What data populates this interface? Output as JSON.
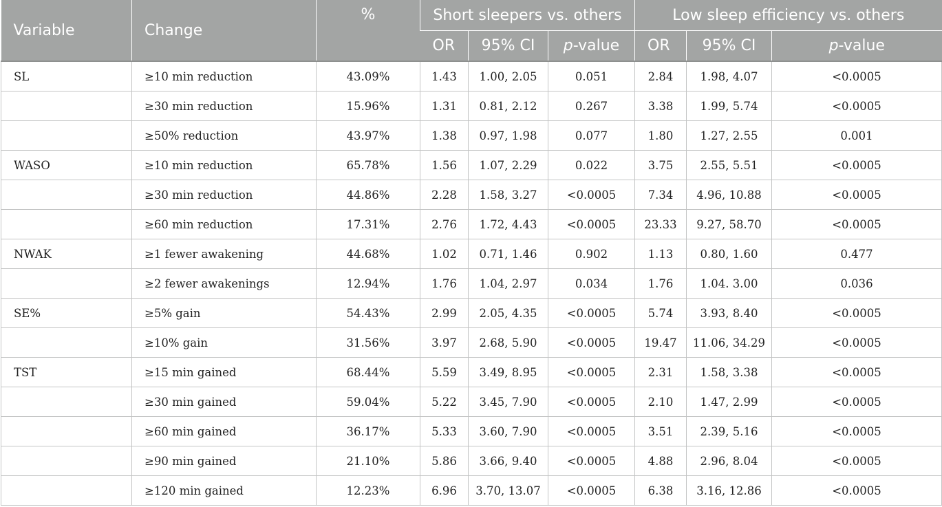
{
  "header": {
    "variable": "Variable",
    "change": "Change",
    "percent": "%",
    "group1": "Short sleepers vs. others",
    "group2": "Low sleep efficiency vs. others",
    "or": "OR",
    "ci": "95% CI",
    "p_italic": "p",
    "p_rest": "-value"
  },
  "rows": [
    {
      "variable": "SL",
      "change": "≥10 min reduction",
      "percent": "43.09%",
      "or1": "1.43",
      "ci1": "1.00, 2.05",
      "p1": "0.051",
      "or2": "2.84",
      "ci2": "1.98, 4.07",
      "p2": "<0.0005"
    },
    {
      "variable": "",
      "change": "≥30 min reduction",
      "percent": "15.96%",
      "or1": "1.31",
      "ci1": "0.81, 2.12",
      "p1": "0.267",
      "or2": "3.38",
      "ci2": "1.99, 5.74",
      "p2": "<0.0005"
    },
    {
      "variable": "",
      "change": "≥50% reduction",
      "percent": "43.97%",
      "or1": "1.38",
      "ci1": "0.97, 1.98",
      "p1": "0.077",
      "or2": "1.80",
      "ci2": "1.27, 2.55",
      "p2": "0.001"
    },
    {
      "variable": "WASO",
      "change": "≥10 min reduction",
      "percent": "65.78%",
      "or1": "1.56",
      "ci1": "1.07, 2.29",
      "p1": "0.022",
      "or2": "3.75",
      "ci2": "2.55, 5.51",
      "p2": "<0.0005"
    },
    {
      "variable": "",
      "change": "≥30 min reduction",
      "percent": "44.86%",
      "or1": "2.28",
      "ci1": "1.58, 3.27",
      "p1": "<0.0005",
      "or2": "7.34",
      "ci2": "4.96, 10.88",
      "p2": "<0.0005"
    },
    {
      "variable": "",
      "change": "≥60 min reduction",
      "percent": "17.31%",
      "or1": "2.76",
      "ci1": "1.72, 4.43",
      "p1": "<0.0005",
      "or2": "23.33",
      "ci2": "9.27, 58.70",
      "p2": "<0.0005"
    },
    {
      "variable": "NWAK",
      "change": "≥1 fewer awakening",
      "percent": "44.68%",
      "or1": "1.02",
      "ci1": "0.71, 1.46",
      "p1": "0.902",
      "or2": "1.13",
      "ci2": "0.80, 1.60",
      "p2": "0.477"
    },
    {
      "variable": "",
      "change": "≥2 fewer awakenings",
      "percent": "12.94%",
      "or1": "1.76",
      "ci1": "1.04, 2.97",
      "p1": "0.034",
      "or2": "1.76",
      "ci2": "1.04. 3.00",
      "p2": "0.036"
    },
    {
      "variable": "SE%",
      "change": "≥5% gain",
      "percent": "54.43%",
      "or1": "2.99",
      "ci1": "2.05, 4.35",
      "p1": "<0.0005",
      "or2": "5.74",
      "ci2": "3.93, 8.40",
      "p2": "<0.0005"
    },
    {
      "variable": "",
      "change": "≥10% gain",
      "percent": "31.56%",
      "or1": "3.97",
      "ci1": "2.68, 5.90",
      "p1": "<0.0005",
      "or2": "19.47",
      "ci2": "11.06, 34.29",
      "p2": "<0.0005"
    },
    {
      "variable": "TST",
      "change": "≥15 min gained",
      "percent": "68.44%",
      "or1": "5.59",
      "ci1": "3.49, 8.95",
      "p1": "<0.0005",
      "or2": "2.31",
      "ci2": "1.58, 3.38",
      "p2": "<0.0005"
    },
    {
      "variable": "",
      "change": "≥30 min gained",
      "percent": "59.04%",
      "or1": "5.22",
      "ci1": "3.45, 7.90",
      "p1": "<0.0005",
      "or2": "2.10",
      "ci2": "1.47, 2.99",
      "p2": "<0.0005"
    },
    {
      "variable": "",
      "change": "≥60 min gained",
      "percent": "36.17%",
      "or1": "5.33",
      "ci1": "3.60, 7.90",
      "p1": "<0.0005",
      "or2": "3.51",
      "ci2": "2.39, 5.16",
      "p2": "<0.0005"
    },
    {
      "variable": "",
      "change": "≥90 min gained",
      "percent": "21.10%",
      "or1": "5.86",
      "ci1": "3.66, 9.40",
      "p1": "<0.0005",
      "or2": "4.88",
      "ci2": "2.96, 8.04",
      "p2": "<0.0005"
    },
    {
      "variable": "",
      "change": "≥120 min gained",
      "percent": "12.23%",
      "or1": "6.96",
      "ci1": "3.70, 13.07",
      "p1": "<0.0005",
      "or2": "6.38",
      "ci2": "3.16, 12.86",
      "p2": "<0.0005"
    }
  ]
}
